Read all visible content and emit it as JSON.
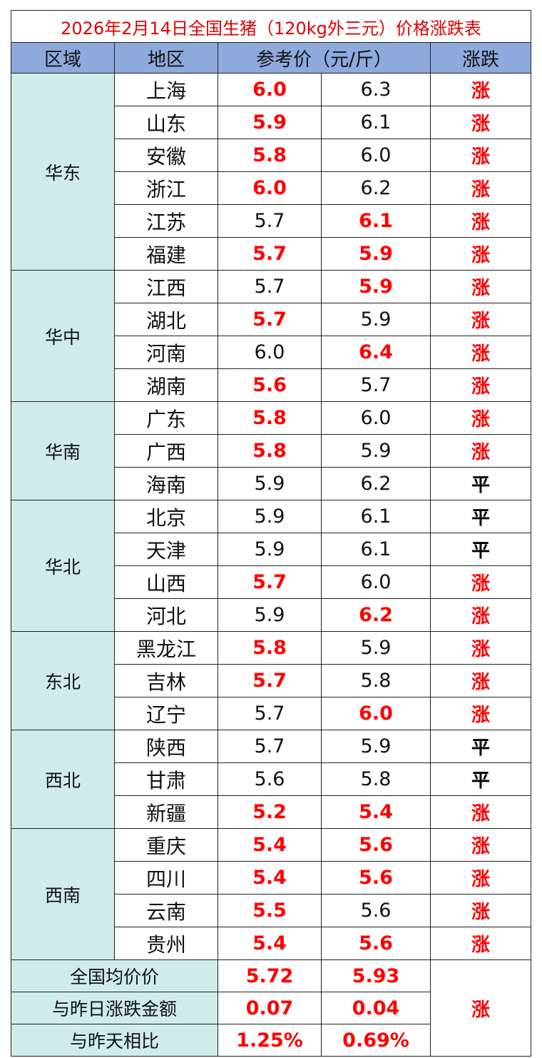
{
  "title": "2026年2月14日全国生猪（120kg外三元）价格涨跌表",
  "headers": {
    "region": "区域",
    "area": "地区",
    "price": "参考价（元/斤）",
    "trend": "涨跌"
  },
  "colors": {
    "up": "#ff0000",
    "flat": "#000000",
    "header_bg": "#8ea9db",
    "region_bg": "#d0ecea"
  },
  "groups": [
    {
      "region": "华东",
      "rows": [
        {
          "area": "上海",
          "p1": "6.0",
          "p1_red": true,
          "p2": "6.3",
          "p2_red": false,
          "trend": "涨"
        },
        {
          "area": "山东",
          "p1": "5.9",
          "p1_red": true,
          "p2": "6.1",
          "p2_red": false,
          "trend": "涨"
        },
        {
          "area": "安徽",
          "p1": "5.8",
          "p1_red": true,
          "p2": "6.0",
          "p2_red": false,
          "trend": "涨"
        },
        {
          "area": "浙江",
          "p1": "6.0",
          "p1_red": true,
          "p2": "6.2",
          "p2_red": false,
          "trend": "涨"
        },
        {
          "area": "江苏",
          "p1": "5.7",
          "p1_red": false,
          "p2": "6.1",
          "p2_red": true,
          "trend": "涨"
        },
        {
          "area": "福建",
          "p1": "5.7",
          "p1_red": true,
          "p2": "5.9",
          "p2_red": true,
          "trend": "涨"
        }
      ]
    },
    {
      "region": "华中",
      "rows": [
        {
          "area": "江西",
          "p1": "5.7",
          "p1_red": false,
          "p2": "5.9",
          "p2_red": true,
          "trend": "涨"
        },
        {
          "area": "湖北",
          "p1": "5.7",
          "p1_red": true,
          "p2": "5.9",
          "p2_red": false,
          "trend": "涨"
        },
        {
          "area": "河南",
          "p1": "6.0",
          "p1_red": false,
          "p2": "6.4",
          "p2_red": true,
          "trend": "涨"
        },
        {
          "area": "湖南",
          "p1": "5.6",
          "p1_red": true,
          "p2": "5.7",
          "p2_red": false,
          "trend": "涨"
        }
      ]
    },
    {
      "region": "华南",
      "rows": [
        {
          "area": "广东",
          "p1": "5.8",
          "p1_red": true,
          "p2": "6.0",
          "p2_red": false,
          "trend": "涨"
        },
        {
          "area": "广西",
          "p1": "5.8",
          "p1_red": true,
          "p2": "5.9",
          "p2_red": false,
          "trend": "涨"
        },
        {
          "area": "海南",
          "p1": "5.9",
          "p1_red": false,
          "p2": "6.2",
          "p2_red": false,
          "trend": "平"
        }
      ]
    },
    {
      "region": "华北",
      "rows": [
        {
          "area": "北京",
          "p1": "5.9",
          "p1_red": false,
          "p2": "6.1",
          "p2_red": false,
          "trend": "平"
        },
        {
          "area": "天津",
          "p1": "5.9",
          "p1_red": false,
          "p2": "6.1",
          "p2_red": false,
          "trend": "平"
        },
        {
          "area": "山西",
          "p1": "5.7",
          "p1_red": true,
          "p2": "6.0",
          "p2_red": false,
          "trend": "涨"
        },
        {
          "area": "河北",
          "p1": "5.9",
          "p1_red": false,
          "p2": "6.2",
          "p2_red": true,
          "trend": "涨"
        }
      ]
    },
    {
      "region": "东北",
      "rows": [
        {
          "area": "黑龙江",
          "p1": "5.8",
          "p1_red": true,
          "p2": "5.9",
          "p2_red": false,
          "trend": "涨"
        },
        {
          "area": "吉林",
          "p1": "5.7",
          "p1_red": true,
          "p2": "5.8",
          "p2_red": false,
          "trend": "涨"
        },
        {
          "area": "辽宁",
          "p1": "5.7",
          "p1_red": false,
          "p2": "6.0",
          "p2_red": true,
          "trend": "涨"
        }
      ]
    },
    {
      "region": "西北",
      "rows": [
        {
          "area": "陕西",
          "p1": "5.7",
          "p1_red": false,
          "p2": "5.9",
          "p2_red": false,
          "trend": "平"
        },
        {
          "area": "甘肃",
          "p1": "5.6",
          "p1_red": false,
          "p2": "5.8",
          "p2_red": false,
          "trend": "平"
        },
        {
          "area": "新疆",
          "p1": "5.2",
          "p1_red": true,
          "p2": "5.4",
          "p2_red": true,
          "trend": "涨"
        }
      ]
    },
    {
      "region": "西南",
      "rows": [
        {
          "area": "重庆",
          "p1": "5.4",
          "p1_red": true,
          "p2": "5.6",
          "p2_red": true,
          "trend": "涨"
        },
        {
          "area": "四川",
          "p1": "5.4",
          "p1_red": true,
          "p2": "5.6",
          "p2_red": true,
          "trend": "涨"
        },
        {
          "area": "云南",
          "p1": "5.5",
          "p1_red": true,
          "p2": "5.6",
          "p2_red": false,
          "trend": "涨"
        },
        {
          "area": "贵州",
          "p1": "5.4",
          "p1_red": true,
          "p2": "5.6",
          "p2_red": true,
          "trend": "涨"
        }
      ]
    }
  ],
  "summary": {
    "rows": [
      {
        "label": "全国均价价",
        "v1": "5.72",
        "v2": "5.93"
      },
      {
        "label": "与昨日涨跌金额",
        "v1": "0.07",
        "v2": "0.04"
      },
      {
        "label": "与昨天相比",
        "v1": "1.25%",
        "v2": "0.69%"
      }
    ],
    "trend": "涨"
  }
}
